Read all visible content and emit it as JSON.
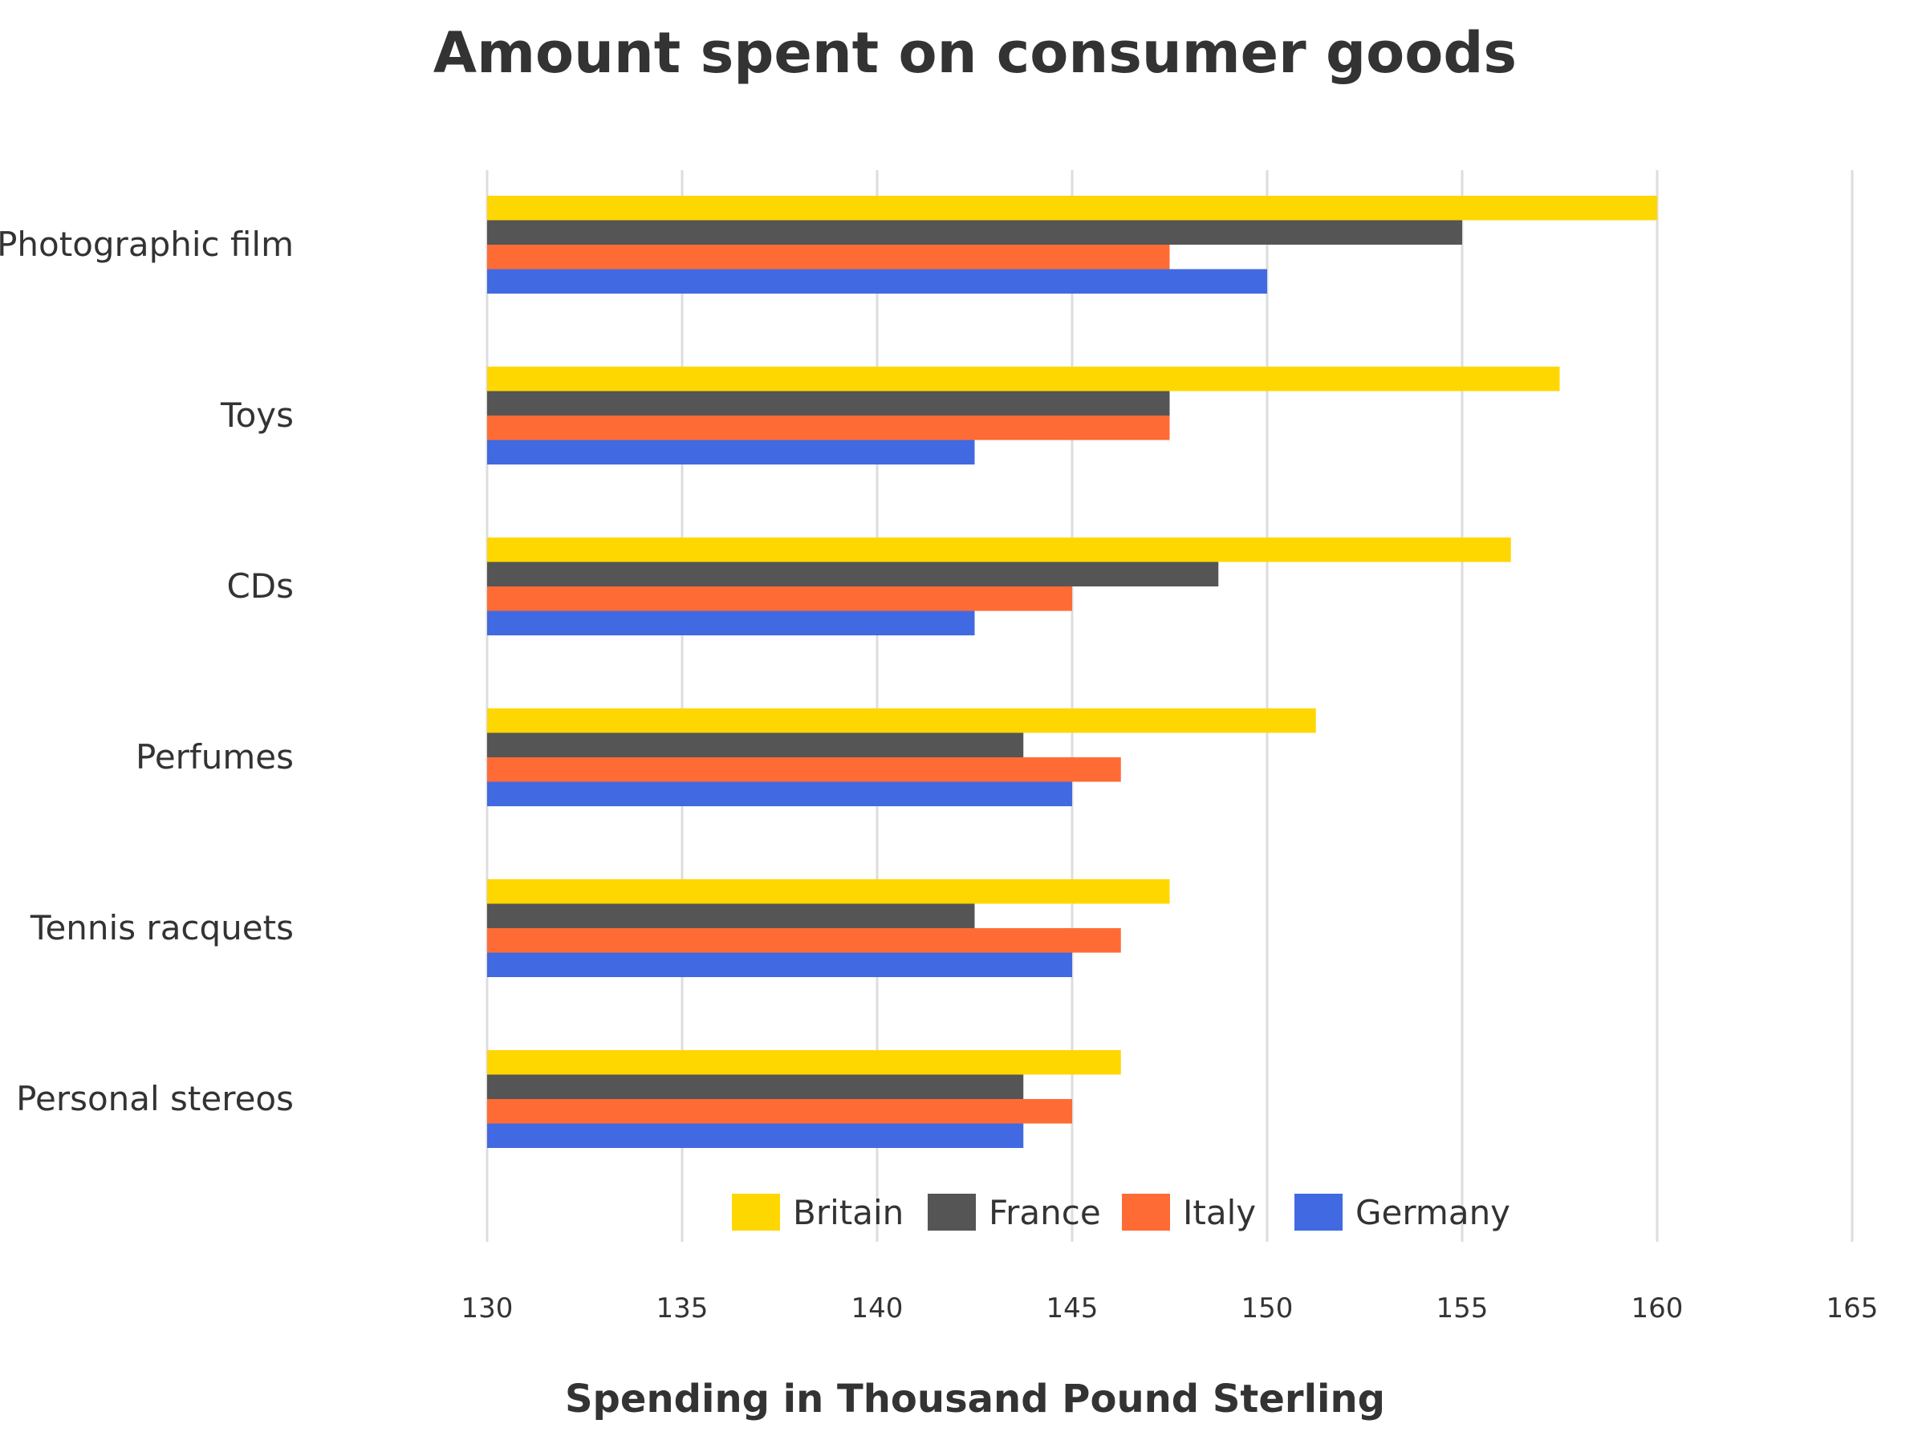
{
  "chart_data": {
    "type": "bar",
    "orientation": "horizontal",
    "title": "Amount spent on consumer goods",
    "xlabel": "Spending in Thousand Pound Sterling",
    "ylabel": "",
    "xlim": [
      130,
      165
    ],
    "ticks": [
      130,
      135,
      140,
      145,
      150,
      155,
      160,
      165
    ],
    "grid": true,
    "legend_position": "bottom",
    "categories": [
      "Photographic film",
      "Toys",
      "CDs",
      "Perfumes",
      "Tennis racquets",
      "Personal stereos"
    ],
    "series": [
      {
        "name": "Britain",
        "color": "#FFD700",
        "values": [
          160,
          157.5,
          156.25,
          151.25,
          147.5,
          146.25
        ]
      },
      {
        "name": "France",
        "color": "#555555",
        "values": [
          155,
          147.5,
          148.75,
          143.75,
          142.5,
          143.75
        ]
      },
      {
        "name": "Italy",
        "color": "#FF6B35",
        "values": [
          147.5,
          147.5,
          145,
          146.25,
          146.25,
          145
        ]
      },
      {
        "name": "Germany",
        "color": "#4169E1",
        "values": [
          150,
          142.5,
          142.5,
          145,
          145,
          143.75
        ]
      }
    ]
  }
}
